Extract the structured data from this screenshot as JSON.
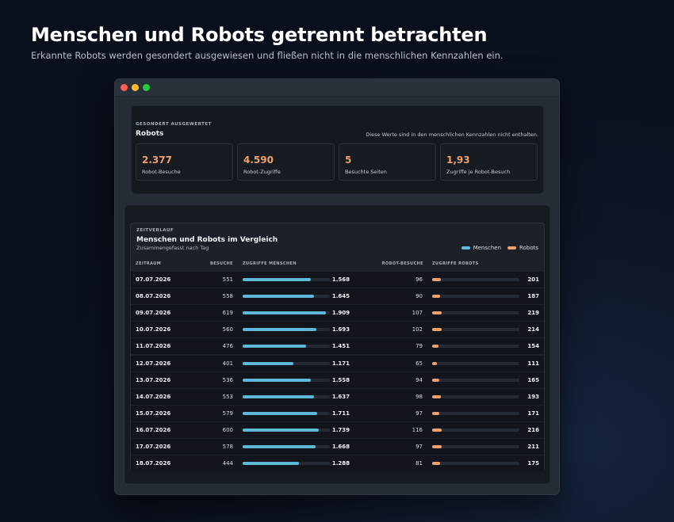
{
  "hero": {
    "title": "Menschen und Robots getrennt betrachten",
    "subtitle": "Erkannte Robots werden gesondert ausgewiesen und fließen nicht in die menschlichen Kennzahlen ein."
  },
  "robots_card": {
    "eyebrow": "GESONDERT AUSGEWERTET",
    "title": "Robots",
    "note": "Diese Werte sind in den menschlichen Kennzahlen nicht enthalten.",
    "stats": [
      {
        "value": "2.377",
        "label": "Robot-Besuche"
      },
      {
        "value": "4.590",
        "label": "Robot-Zugriffe"
      },
      {
        "value": "5",
        "label": "Besuchte Seiten"
      },
      {
        "value": "1,93",
        "label": "Zugriffe je Robot-Besuch"
      }
    ]
  },
  "timeline": {
    "eyebrow": "ZEITVERLAUF",
    "title": "Menschen und Robots im Vergleich",
    "subtitle": "Zusammengefasst nach Tag",
    "legend": [
      {
        "label": "Menschen",
        "color": "#5fb8d6"
      },
      {
        "label": "Robots",
        "color": "#f0a06a"
      }
    ],
    "columns": {
      "date": "ZEITRAUM",
      "visits": "BESUCHE",
      "human_hits": "ZUGRIFFE MENSCHEN",
      "robot_visits": "ROBOT-BESUCHE",
      "robot_hits": "ZUGRIFFE ROBOTS"
    },
    "human_scale_max": 2000,
    "robot_scale_max": 2000,
    "rows": [
      {
        "date": "07.07.2026",
        "visits": "551",
        "human_hits": "1.568",
        "human_value": 1568,
        "robot_visits": "96",
        "robot_hits": "201",
        "robot_value": 201
      },
      {
        "date": "08.07.2026",
        "visits": "558",
        "human_hits": "1.645",
        "human_value": 1645,
        "robot_visits": "90",
        "robot_hits": "187",
        "robot_value": 187
      },
      {
        "date": "09.07.2026",
        "visits": "619",
        "human_hits": "1.909",
        "human_value": 1909,
        "robot_visits": "107",
        "robot_hits": "219",
        "robot_value": 219
      },
      {
        "date": "10.07.2026",
        "visits": "560",
        "human_hits": "1.693",
        "human_value": 1693,
        "robot_visits": "102",
        "robot_hits": "214",
        "robot_value": 214
      },
      {
        "date": "11.07.2026",
        "visits": "476",
        "human_hits": "1.451",
        "human_value": 1451,
        "robot_visits": "79",
        "robot_hits": "154",
        "robot_value": 154
      },
      {
        "date": "12.07.2026",
        "visits": "401",
        "human_hits": "1.171",
        "human_value": 1171,
        "robot_visits": "65",
        "robot_hits": "111",
        "robot_value": 111
      },
      {
        "date": "13.07.2026",
        "visits": "536",
        "human_hits": "1.558",
        "human_value": 1558,
        "robot_visits": "94",
        "robot_hits": "165",
        "robot_value": 165
      },
      {
        "date": "14.07.2026",
        "visits": "553",
        "human_hits": "1.637",
        "human_value": 1637,
        "robot_visits": "98",
        "robot_hits": "193",
        "robot_value": 193
      },
      {
        "date": "15.07.2026",
        "visits": "579",
        "human_hits": "1.711",
        "human_value": 1711,
        "robot_visits": "97",
        "robot_hits": "171",
        "robot_value": 171
      },
      {
        "date": "16.07.2026",
        "visits": "600",
        "human_hits": "1.739",
        "human_value": 1739,
        "robot_visits": "116",
        "robot_hits": "216",
        "robot_value": 216
      },
      {
        "date": "17.07.2026",
        "visits": "578",
        "human_hits": "1.668",
        "human_value": 1668,
        "robot_visits": "97",
        "robot_hits": "211",
        "robot_value": 211
      },
      {
        "date": "18.07.2026",
        "visits": "444",
        "human_hits": "1.288",
        "human_value": 1288,
        "robot_visits": "81",
        "robot_hits": "175",
        "robot_value": 175
      }
    ]
  }
}
